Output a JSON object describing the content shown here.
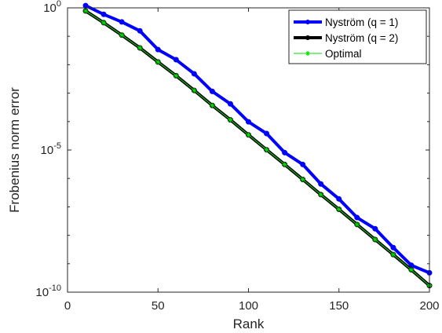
{
  "chart_data": {
    "type": "line",
    "xlabel": "Rank",
    "ylabel": "Frobenius norm error",
    "xlim": [
      0,
      200
    ],
    "ylim": [
      1e-10,
      1
    ],
    "yscale": "log",
    "grid": false,
    "legend_position": "top-right",
    "x_ticks": [
      "0",
      "50",
      "100",
      "150",
      "200"
    ],
    "y_ticks": [
      {
        "value": 1,
        "base": "10",
        "exp": "0"
      },
      {
        "value": 1e-05,
        "base": "10",
        "exp": "-5"
      },
      {
        "value": 1e-10,
        "base": "10",
        "exp": "-10"
      }
    ],
    "x": [
      10,
      20,
      30,
      40,
      50,
      60,
      70,
      80,
      90,
      100,
      110,
      120,
      130,
      140,
      150,
      160,
      170,
      180,
      190,
      200
    ],
    "series": [
      {
        "name": "Nyström (q = 1)",
        "color": "#0000ff",
        "line_width": 4,
        "values": [
          1.2,
          0.59,
          0.32,
          0.155,
          0.034,
          0.015,
          0.0048,
          0.00115,
          0.00042,
          9.8e-05,
          3.8e-05,
          8.1e-06,
          3.1e-06,
          6.4e-07,
          1.9e-07,
          4.2e-08,
          1.7e-08,
          3.7e-09,
          8.8e-10,
          4.8e-10
        ]
      },
      {
        "name": "Nyström (q = 2)",
        "color": "#000000",
        "line_width": 4,
        "values": [
          0.78,
          0.3,
          0.11,
          0.039,
          0.0125,
          0.0041,
          0.00125,
          0.00037,
          0.000115,
          3.4e-05,
          1.02e-05,
          3.1e-06,
          9.2e-07,
          2.7e-07,
          8.2e-08,
          2.4e-08,
          7.1e-09,
          2.1e-09,
          6.1e-10,
          1.7e-10
        ]
      },
      {
        "name": "Optimal",
        "color": "#00dd00",
        "line_width": 1,
        "marker": "asterisk",
        "values": [
          0.78,
          0.3,
          0.11,
          0.039,
          0.0125,
          0.0041,
          0.00125,
          0.00037,
          0.000115,
          3.4e-05,
          1.02e-05,
          3.1e-06,
          9.2e-07,
          2.7e-07,
          8.2e-08,
          2.4e-08,
          7.1e-09,
          2.1e-09,
          6.1e-10,
          1.7e-10
        ]
      }
    ]
  }
}
